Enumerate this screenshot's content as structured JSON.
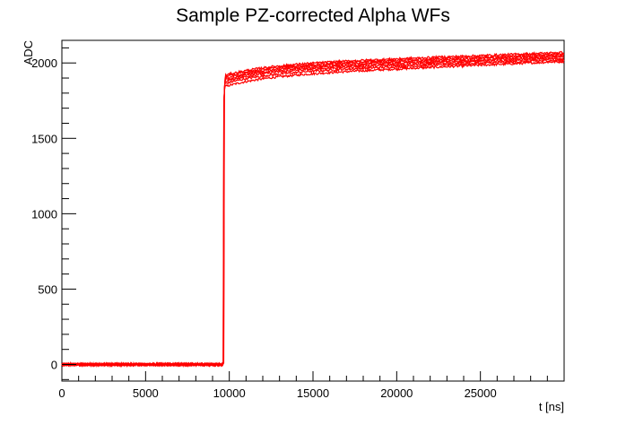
{
  "chart_data": {
    "type": "line",
    "title": "Sample PZ-corrected Alpha WFs",
    "xlabel": "t [ns]",
    "ylabel": "ADC",
    "xlim": [
      0,
      30000
    ],
    "ylim": [
      -110,
      2150
    ],
    "x_ticks": [
      0,
      5000,
      10000,
      15000,
      20000,
      25000
    ],
    "y_ticks": [
      0,
      500,
      1000,
      1500,
      2000
    ],
    "grid": false,
    "legend": "none",
    "line_color": "#ff0000",
    "rise_time_ns": 9650,
    "baseline_adc": 0,
    "series": [
      {
        "plateau_start": 1900,
        "plateau_end": 2000
      },
      {
        "plateau_start": 1920,
        "plateau_end": 2010
      },
      {
        "plateau_start": 1935,
        "plateau_end": 2020
      },
      {
        "plateau_start": 1945,
        "plateau_end": 2030
      },
      {
        "plateau_start": 1955,
        "plateau_end": 2040
      },
      {
        "plateau_start": 1965,
        "plateau_end": 2050
      },
      {
        "plateau_start": 1975,
        "plateau_end": 2060
      }
    ]
  }
}
